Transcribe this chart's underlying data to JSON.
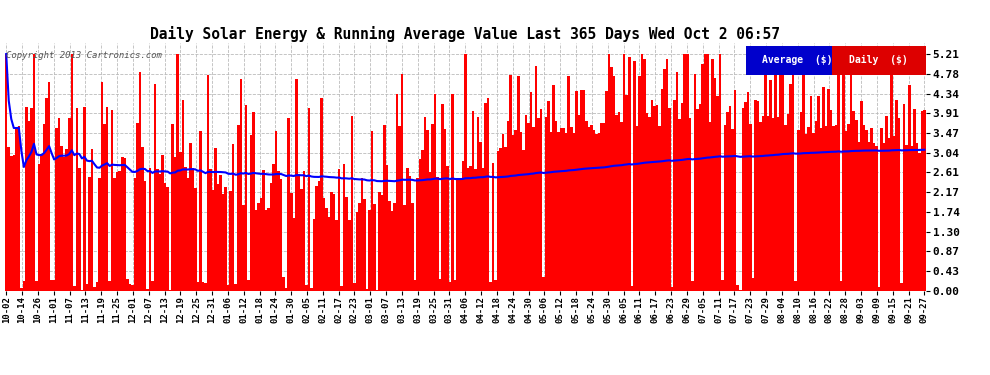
{
  "title": "Daily Solar Energy & Running Average Value Last 365 Days Wed Oct 2 06:57",
  "copyright": "Copyright 2013 Cartronics.com",
  "legend_average_label": "Average  ($)",
  "legend_daily_label": "Daily  ($)",
  "bar_color": "#ff0000",
  "line_color": "#0000ff",
  "background_color": "#ffffff",
  "plot_bg_color": "#ffffff",
  "grid_color": "#bbbbbb",
  "title_color": "#000000",
  "yticks": [
    0.0,
    0.43,
    0.87,
    1.3,
    1.74,
    2.17,
    2.61,
    3.04,
    3.47,
    3.91,
    4.34,
    4.78,
    5.21
  ],
  "ylim": [
    0.0,
    5.45
  ],
  "num_days": 365,
  "seed": 12345,
  "xtick_labels": [
    "10-02",
    "10-14",
    "10-26",
    "11-01",
    "11-07",
    "11-13",
    "11-19",
    "11-25",
    "12-01",
    "12-07",
    "12-13",
    "12-19",
    "12-25",
    "12-31",
    "01-06",
    "01-12",
    "01-18",
    "01-24",
    "01-30",
    "02-05",
    "02-11",
    "02-17",
    "02-23",
    "03-01",
    "03-07",
    "03-13",
    "03-19",
    "03-25",
    "03-31",
    "04-06",
    "04-12",
    "04-18",
    "04-24",
    "04-30",
    "05-06",
    "05-12",
    "05-18",
    "05-24",
    "05-30",
    "06-05",
    "06-11",
    "06-17",
    "06-23",
    "06-29",
    "07-05",
    "07-11",
    "07-17",
    "07-23",
    "07-29",
    "08-04",
    "08-10",
    "08-16",
    "08-22",
    "08-28",
    "09-03",
    "09-09",
    "09-15",
    "09-21",
    "09-27"
  ]
}
